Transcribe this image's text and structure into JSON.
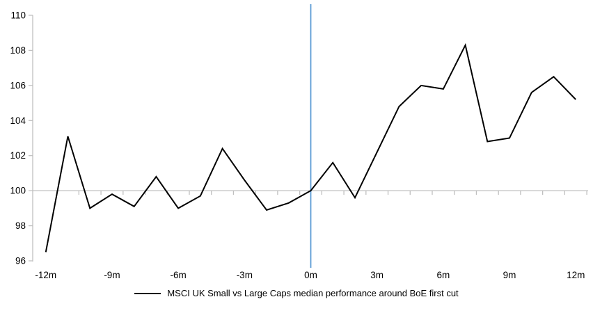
{
  "chart_data": {
    "type": "line",
    "title": "",
    "series": [
      {
        "name": "MSCI UK Small vs Large Caps median performance around BoE first cut",
        "x": [
          -12,
          -11,
          -10,
          -9,
          -8,
          -7,
          -6,
          -5,
          -4,
          -3,
          -2,
          -1,
          0,
          1,
          2,
          3,
          4,
          5,
          6,
          7,
          8,
          9,
          10,
          11,
          12
        ],
        "values": [
          96.5,
          103.1,
          99.0,
          99.8,
          99.1,
          100.8,
          99.0,
          99.7,
          102.4,
          100.6,
          98.9,
          99.3,
          100.0,
          101.6,
          99.6,
          102.2,
          104.8,
          106.0,
          105.8,
          108.3,
          102.8,
          103.0,
          105.6,
          106.5,
          105.2
        ]
      }
    ],
    "xlabel": "",
    "ylabel": "",
    "xlim": [
      -12.56,
      12.56
    ],
    "ylim": [
      96,
      110
    ],
    "y_ticks": [
      96,
      98,
      100,
      102,
      104,
      106,
      108,
      110
    ],
    "x_tick_months": [
      -12,
      -9,
      -6,
      -3,
      0,
      3,
      6,
      9,
      12
    ],
    "x_tick_labels": [
      "-12m",
      "-9m",
      "-6m",
      "-3m",
      "0m",
      "3m",
      "6m",
      "9m",
      "12m"
    ],
    "baseline_value": 100,
    "event_line_x": 0,
    "grid": "single horizontal line at baseline 100; category ticks between months",
    "legend_position": "bottom-center",
    "colors": {
      "series_line": "#000000",
      "event_line": "#5B9BD5",
      "axis_line": "#BFBFBF",
      "tick_text": "#000000",
      "background": "#ffffff"
    }
  },
  "legend": {
    "label": "MSCI UK Small vs Large Caps median performance around BoE first cut"
  }
}
